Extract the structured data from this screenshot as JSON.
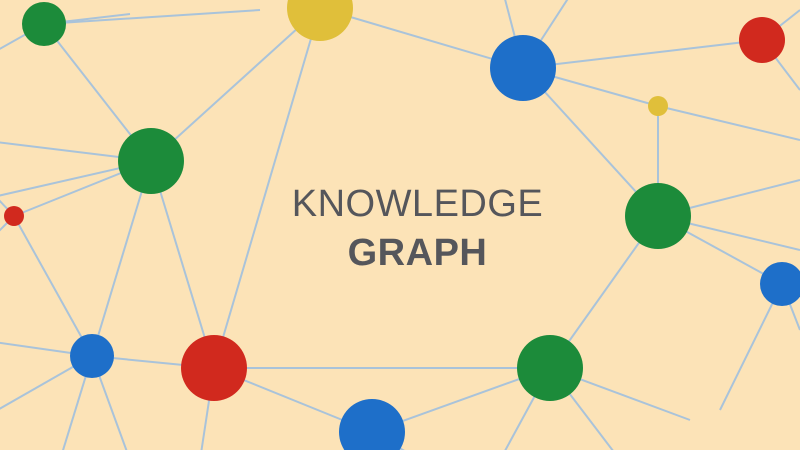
{
  "title": {
    "line1": "KNOWLEDGE",
    "line2": "GRAPH"
  },
  "colors": {
    "background": "#FCE3B7",
    "edge": "#A9C3DA",
    "green": "#1C8B3A",
    "blue": "#1E6FC9",
    "red": "#D1291E",
    "yellow": "#E0BF3A",
    "text": "#55565B"
  },
  "graph": {
    "node_colors": [
      "green",
      "yellow",
      "blue",
      "red",
      "yellow",
      "green",
      "red",
      "green",
      "blue",
      "blue",
      "red",
      "blue",
      "green"
    ]
  }
}
